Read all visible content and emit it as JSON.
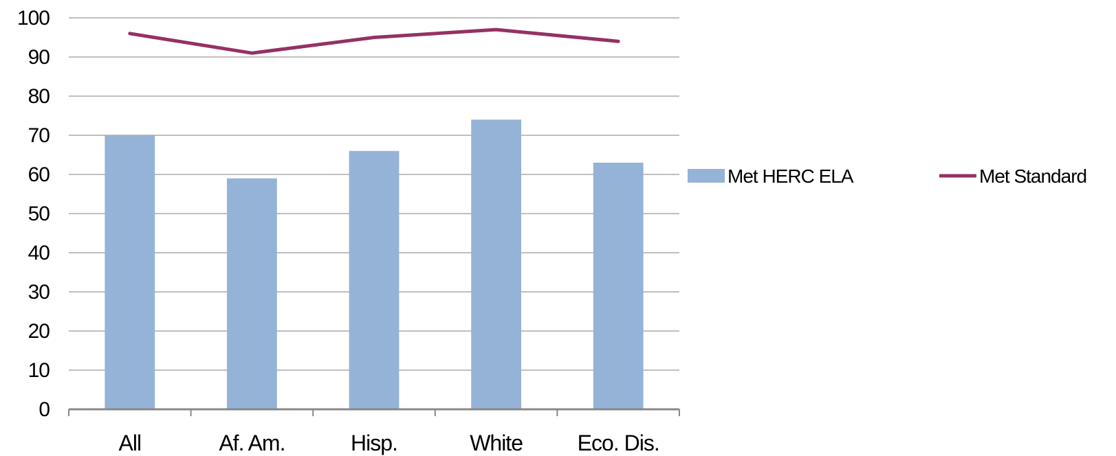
{
  "chart_data": {
    "type": "bar",
    "categories": [
      "All",
      "Af. Am.",
      "Hisp.",
      "White",
      "Eco. Dis."
    ],
    "series": [
      {
        "name": "Met HERC ELA",
        "kind": "bar",
        "color": "#95B3D7",
        "values": [
          70,
          59,
          66,
          74,
          63
        ]
      },
      {
        "name": "Met Standard",
        "kind": "line",
        "color": "#953163",
        "values": [
          96,
          91,
          95,
          97,
          94
        ]
      }
    ],
    "ylim": [
      0,
      100
    ],
    "yticks": [
      0,
      10,
      20,
      30,
      40,
      50,
      60,
      70,
      80,
      90,
      100
    ],
    "grid": true,
    "legend_position": "right",
    "title": "",
    "xlabel": "",
    "ylabel": ""
  },
  "colors": {
    "grid": "#999999",
    "axis": "#888888"
  }
}
